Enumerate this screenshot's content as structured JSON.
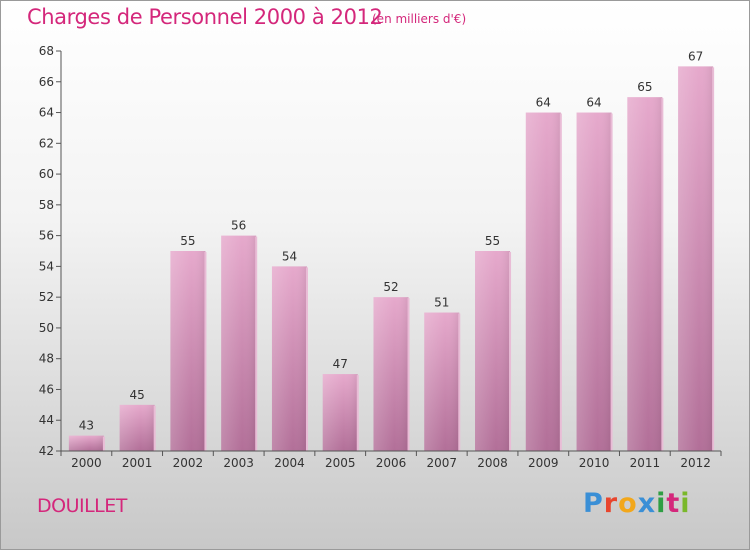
{
  "header": {
    "title": "Charges de Personnel 2000 à 2012",
    "subtitle": "(en milliers d'€)"
  },
  "footer": {
    "commune": "DOUILLET",
    "logo": {
      "letters": [
        "P",
        "r",
        "o",
        "x",
        "i",
        "t",
        "i"
      ],
      "colors": [
        "#3a8fd6",
        "#e8452d",
        "#f2a71b",
        "#3a8fd6",
        "#2f9e44",
        "#d4277b",
        "#7ab82b"
      ]
    }
  },
  "chart_data": {
    "type": "bar",
    "title": "Charges de Personnel 2000 à 2012",
    "subtitle": "(en milliers d'€)",
    "categories": [
      "2000",
      "2001",
      "2002",
      "2003",
      "2004",
      "2005",
      "2006",
      "2007",
      "2008",
      "2009",
      "2010",
      "2011",
      "2012"
    ],
    "values": [
      43,
      45,
      55,
      56,
      54,
      47,
      52,
      51,
      55,
      64,
      64,
      65,
      67
    ],
    "value_labels": [
      "43",
      "45",
      "55",
      "56",
      "54",
      "47",
      "52",
      "51",
      "55",
      "64",
      "64",
      "65",
      "67"
    ],
    "ylim": [
      42,
      68
    ],
    "yticks": [
      "42",
      "44",
      "46",
      "48",
      "50",
      "52",
      "54",
      "56",
      "58",
      "60",
      "62",
      "64",
      "66",
      "68"
    ],
    "grid": false,
    "bar_color": "#d58ab5",
    "bar_color_light": "#e6a9cc",
    "bar_color_dark": "#b26f98"
  }
}
